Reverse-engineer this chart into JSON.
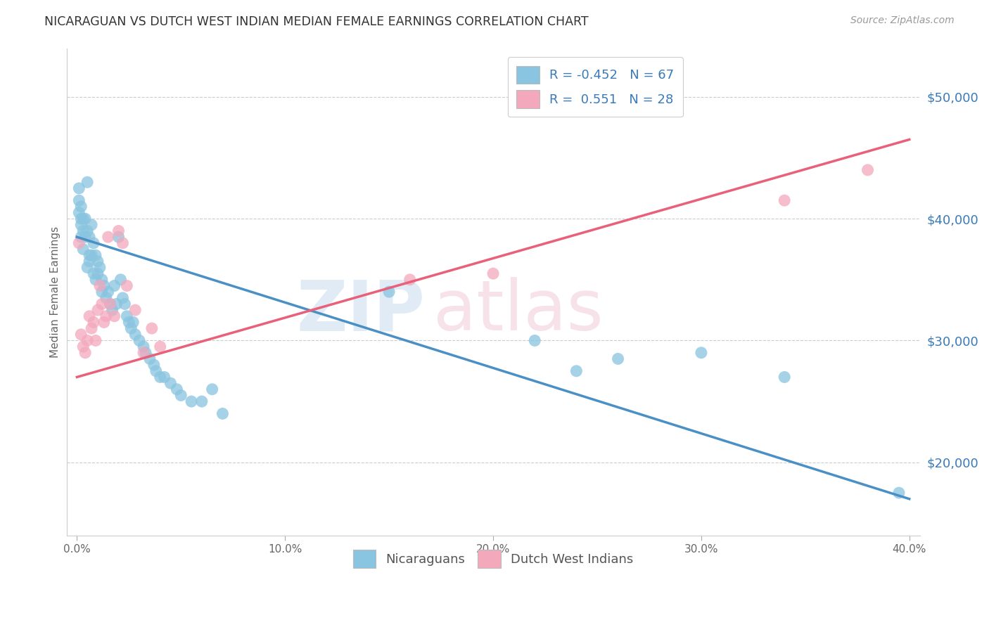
{
  "title": "NICARAGUAN VS DUTCH WEST INDIAN MEDIAN FEMALE EARNINGS CORRELATION CHART",
  "source": "Source: ZipAtlas.com",
  "ylabel": "Median Female Earnings",
  "yticks": [
    20000,
    30000,
    40000,
    50000
  ],
  "ytick_labels": [
    "$20,000",
    "$30,000",
    "$40,000",
    "$50,000"
  ],
  "xticks": [
    0.0,
    0.1,
    0.2,
    0.3,
    0.4
  ],
  "xtick_labels": [
    "0.0%",
    "10.0%",
    "20.0%",
    "30.0%",
    "40.0%"
  ],
  "legend_label1": "Nicaraguans",
  "legend_label2": "Dutch West Indians",
  "color_blue": "#89c4e0",
  "color_pink": "#f4a8bc",
  "color_blue_line": "#4a90c4",
  "color_pink_line": "#e8607a",
  "blue_line_x": [
    0.0,
    0.4
  ],
  "blue_line_y": [
    38500,
    17000
  ],
  "pink_line_x": [
    0.0,
    0.4
  ],
  "pink_line_y": [
    27000,
    46500
  ],
  "xlim": [
    -0.005,
    0.405
  ],
  "ylim": [
    14000,
    54000
  ],
  "blue_scatter_x": [
    0.001,
    0.001,
    0.001,
    0.002,
    0.002,
    0.002,
    0.002,
    0.003,
    0.003,
    0.003,
    0.004,
    0.004,
    0.005,
    0.005,
    0.005,
    0.006,
    0.006,
    0.006,
    0.007,
    0.007,
    0.008,
    0.008,
    0.009,
    0.009,
    0.01,
    0.01,
    0.011,
    0.012,
    0.012,
    0.013,
    0.014,
    0.015,
    0.016,
    0.017,
    0.018,
    0.019,
    0.02,
    0.021,
    0.022,
    0.023,
    0.024,
    0.025,
    0.026,
    0.027,
    0.028,
    0.03,
    0.032,
    0.033,
    0.035,
    0.037,
    0.038,
    0.04,
    0.042,
    0.045,
    0.048,
    0.05,
    0.055,
    0.06,
    0.065,
    0.07,
    0.15,
    0.22,
    0.24,
    0.26,
    0.3,
    0.34,
    0.395
  ],
  "blue_scatter_y": [
    40500,
    41500,
    42500,
    40000,
    41000,
    39500,
    38500,
    40000,
    39000,
    37500,
    38500,
    40000,
    43000,
    39000,
    36000,
    38500,
    37000,
    36500,
    39500,
    37000,
    38000,
    35500,
    37000,
    35000,
    36500,
    35500,
    36000,
    35000,
    34000,
    34500,
    33500,
    34000,
    33000,
    32500,
    34500,
    33000,
    38500,
    35000,
    33500,
    33000,
    32000,
    31500,
    31000,
    31500,
    30500,
    30000,
    29500,
    29000,
    28500,
    28000,
    27500,
    27000,
    27000,
    26500,
    26000,
    25500,
    25000,
    25000,
    26000,
    24000,
    34000,
    30000,
    27500,
    28500,
    29000,
    27000,
    17500
  ],
  "pink_scatter_x": [
    0.001,
    0.002,
    0.003,
    0.004,
    0.005,
    0.006,
    0.007,
    0.008,
    0.009,
    0.01,
    0.011,
    0.012,
    0.013,
    0.014,
    0.015,
    0.016,
    0.018,
    0.02,
    0.022,
    0.024,
    0.028,
    0.032,
    0.036,
    0.04,
    0.16,
    0.2,
    0.34,
    0.38
  ],
  "pink_scatter_y": [
    38000,
    30500,
    29500,
    29000,
    30000,
    32000,
    31000,
    31500,
    30000,
    32500,
    34500,
    33000,
    31500,
    32000,
    38500,
    33000,
    32000,
    39000,
    38000,
    34500,
    32500,
    29000,
    31000,
    29500,
    35000,
    35500,
    41500,
    44000
  ]
}
